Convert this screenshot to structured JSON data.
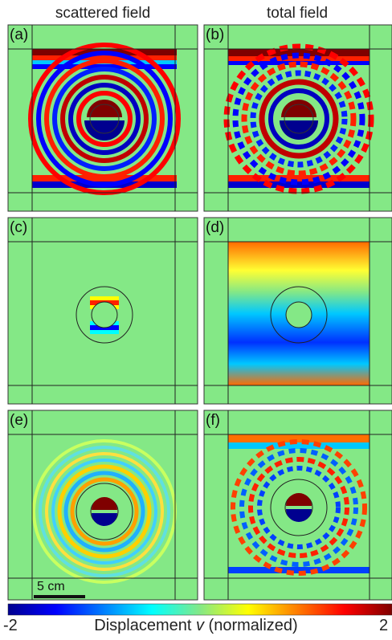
{
  "columns": {
    "left_title": "scattered field",
    "right_title": "total field"
  },
  "panels": [
    {
      "id": "a",
      "label": "(a)",
      "column": "scattered field",
      "case": "ring-waves"
    },
    {
      "id": "b",
      "label": "(b)",
      "column": "total field",
      "case": "ring-waves-interference"
    },
    {
      "id": "c",
      "label": "(c)",
      "column": "scattered field",
      "case": "cloaked"
    },
    {
      "id": "d",
      "label": "(d)",
      "column": "total field",
      "case": "plane-wave"
    },
    {
      "id": "e",
      "label": "(e)",
      "column": "scattered field",
      "case": "weak-rings"
    },
    {
      "id": "f",
      "label": "(f)",
      "column": "total field",
      "case": "weak-interference"
    }
  ],
  "scale_bar": {
    "label": "5 cm"
  },
  "colorbar": {
    "min_label": "-2",
    "max_label": "2",
    "title_prefix": "Displacement ",
    "title_var": "v",
    "title_suffix": " (normalized)",
    "colormap": "jet",
    "colors": [
      "#00008f",
      "#0000ff",
      "#007fff",
      "#00ffff",
      "#7fff7f",
      "#ffff00",
      "#ff7f00",
      "#ff0000",
      "#7f0000"
    ],
    "background_color": "#84e886"
  }
}
